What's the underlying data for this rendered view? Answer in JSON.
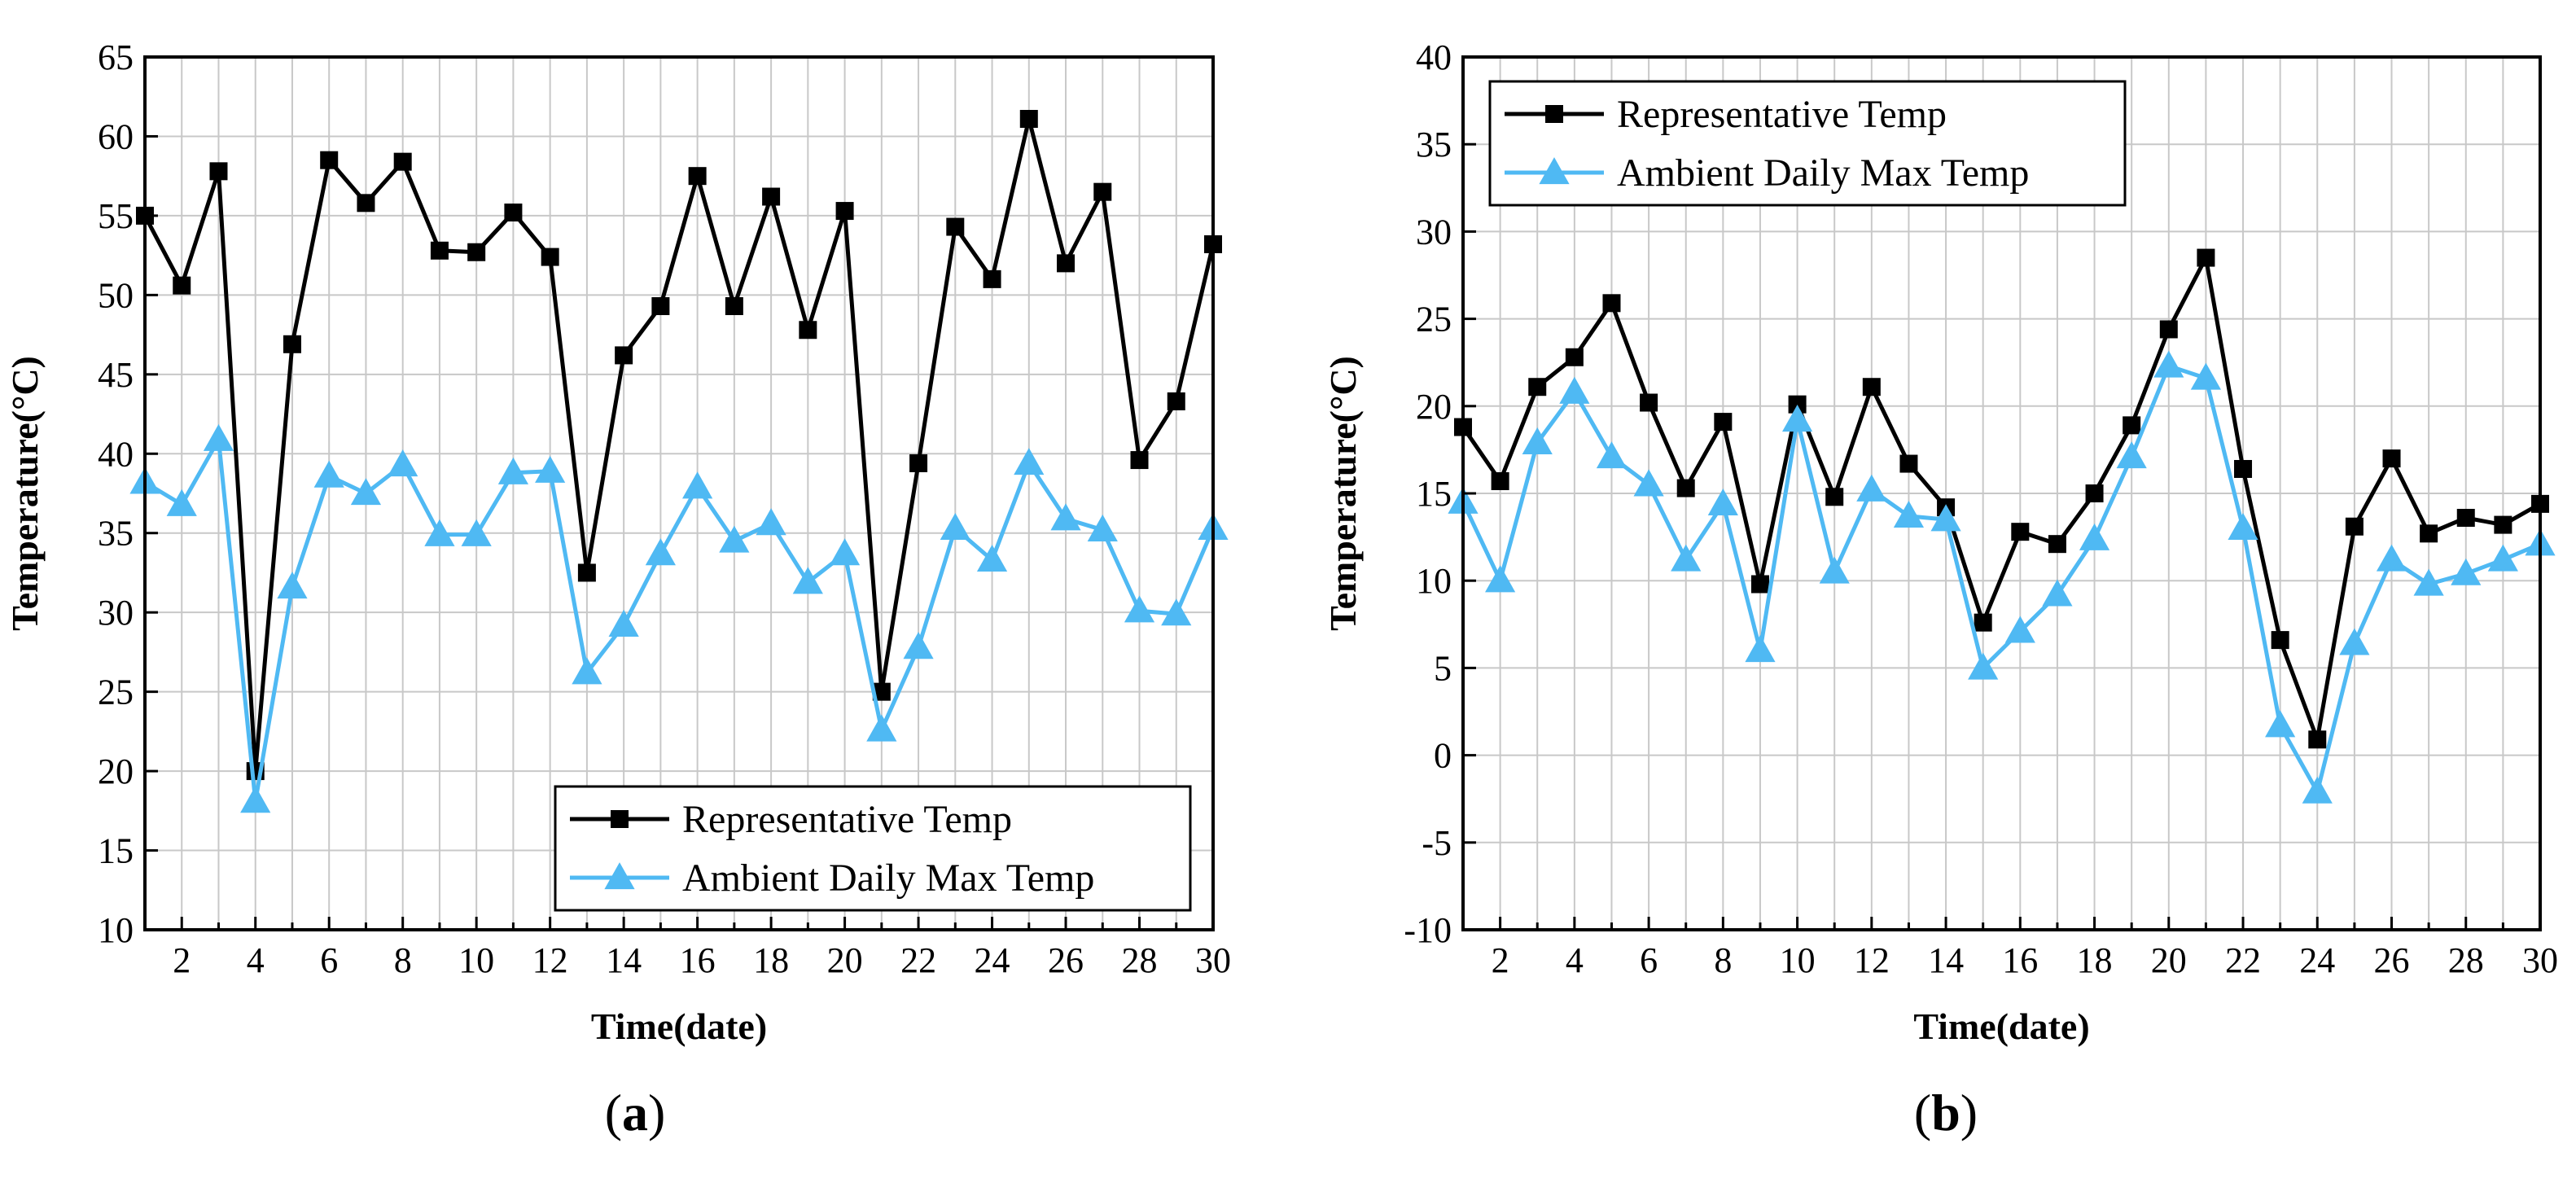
{
  "chart_data": [
    {
      "type": "line",
      "panel_label": "a",
      "xlabel": "Time(date)",
      "ylabel": "Temperature(°C)",
      "xlim": [
        1,
        30
      ],
      "ylim": [
        10,
        65
      ],
      "x_ticks": [
        2,
        4,
        6,
        8,
        10,
        12,
        14,
        16,
        18,
        20,
        22,
        24,
        26,
        28,
        30
      ],
      "y_ticks": [
        10,
        15,
        20,
        25,
        30,
        35,
        40,
        45,
        50,
        55,
        60,
        65
      ],
      "grid": true,
      "legend_position": "bottom-right",
      "x": [
        1,
        2,
        3,
        4,
        5,
        6,
        7,
        8,
        9,
        10,
        11,
        12,
        13,
        14,
        15,
        16,
        17,
        18,
        19,
        20,
        21,
        22,
        23,
        24,
        25,
        26,
        27,
        28,
        29,
        30
      ],
      "series": [
        {
          "name": "Representative Temp",
          "color": "#000000",
          "marker": "square",
          "values": [
            55.0,
            50.6,
            57.8,
            20.0,
            46.9,
            58.5,
            55.8,
            58.4,
            52.8,
            52.7,
            55.2,
            52.4,
            32.5,
            46.2,
            49.3,
            57.5,
            49.3,
            56.2,
            47.8,
            55.3,
            25.0,
            39.4,
            54.3,
            51.0,
            61.1,
            52.0,
            56.5,
            39.6,
            43.3,
            53.2
          ]
        },
        {
          "name": "Ambient Daily Max Temp",
          "color": "#4fb9f3",
          "marker": "triangle",
          "values": [
            38.2,
            36.8,
            40.9,
            18.1,
            31.6,
            38.6,
            37.5,
            39.3,
            34.9,
            34.9,
            38.8,
            38.9,
            26.2,
            29.2,
            33.7,
            37.9,
            34.5,
            35.6,
            31.9,
            33.7,
            22.6,
            27.8,
            35.3,
            33.3,
            39.4,
            35.9,
            35.2,
            30.1,
            29.9,
            35.3
          ]
        }
      ]
    },
    {
      "type": "line",
      "panel_label": "b",
      "xlabel": "Time(date)",
      "ylabel": "Temperature(°C)",
      "xlim": [
        1,
        30
      ],
      "ylim": [
        -10,
        40
      ],
      "x_ticks": [
        2,
        4,
        6,
        8,
        10,
        12,
        14,
        16,
        18,
        20,
        22,
        24,
        26,
        28,
        30
      ],
      "y_ticks": [
        -10,
        -5,
        0,
        5,
        10,
        15,
        20,
        25,
        30,
        35,
        40
      ],
      "grid": true,
      "legend_position": "top-left",
      "x": [
        1,
        2,
        3,
        4,
        5,
        6,
        7,
        8,
        9,
        10,
        11,
        12,
        13,
        14,
        15,
        16,
        17,
        18,
        19,
        20,
        21,
        22,
        23,
        24,
        25,
        26,
        27,
        28,
        29,
        30
      ],
      "series": [
        {
          "name": "Representative Temp",
          "color": "#000000",
          "marker": "square",
          "values": [
            18.8,
            15.7,
            21.1,
            22.8,
            25.9,
            20.2,
            15.3,
            19.1,
            9.8,
            20.1,
            14.8,
            21.1,
            16.7,
            14.2,
            7.6,
            12.8,
            12.1,
            15.0,
            18.9,
            24.4,
            28.5,
            16.4,
            6.6,
            0.9,
            13.1,
            17.0,
            12.7,
            13.6,
            13.2,
            14.4
          ]
        },
        {
          "name": "Ambient Daily Max Temp",
          "color": "#4fb9f3",
          "marker": "triangle",
          "values": [
            14.5,
            10.0,
            17.9,
            20.8,
            17.1,
            15.5,
            11.2,
            14.4,
            6.0,
            19.2,
            10.5,
            15.2,
            13.7,
            13.5,
            5.0,
            7.1,
            9.2,
            12.4,
            17.1,
            22.3,
            21.6,
            13.0,
            1.7,
            -2.1,
            6.4,
            11.2,
            9.8,
            10.4,
            11.2,
            12.1
          ]
        }
      ]
    }
  ]
}
